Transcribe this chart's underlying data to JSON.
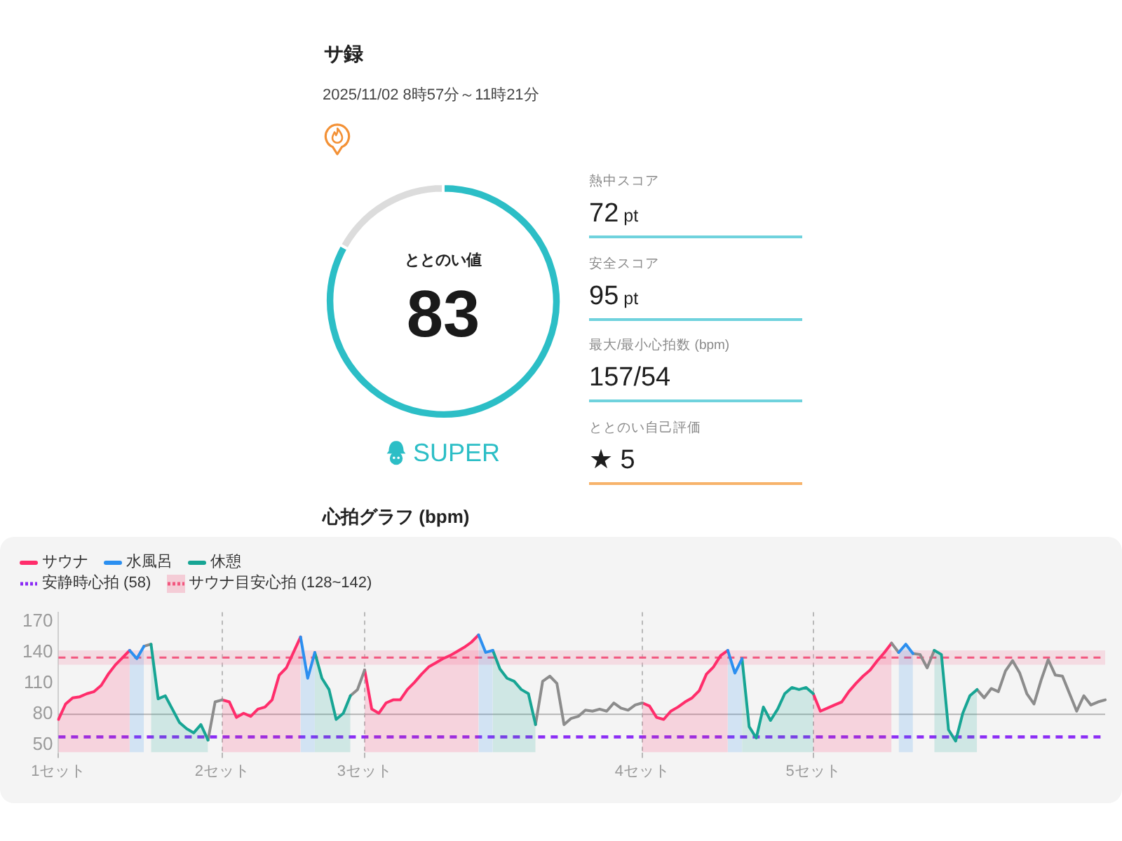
{
  "chart_data": [
    {
      "type": "other",
      "title": "サ録",
      "subtitle": "2025/11/02 8時57分～11時21分"
    },
    {
      "type": "donut",
      "title": "ととのい値",
      "categories": [
        null,
        null
      ],
      "values": [
        83,
        17
      ],
      "colors": [
        "#2cbec6",
        "#dcdcdc"
      ],
      "value_labels": [
        "83",
        null
      ],
      "annotations": [
        "SUPER"
      ]
    },
    {
      "type": "other",
      "annotations": [
        "熱中スコア",
        "72 pt",
        "安全スコア",
        "95 pt",
        "最大/最小心拍数 (bpm)",
        "157/54",
        "ととのい自己評価",
        "★ 5"
      ]
    },
    {
      "type": "area",
      "title": "心拍グラフ (bpm)",
      "categories": [
        "1セット",
        null,
        null,
        null,
        null,
        null,
        null,
        null,
        null,
        null,
        null,
        null,
        null,
        null,
        null,
        null,
        null,
        null,
        null,
        null,
        null,
        null,
        null,
        "2セット",
        null,
        null,
        null,
        null,
        null,
        null,
        null,
        null,
        null,
        null,
        null,
        null,
        null,
        null,
        null,
        null,
        null,
        null,
        null,
        "3セット",
        null,
        null,
        null,
        null,
        null,
        null,
        null,
        null,
        null,
        null,
        null,
        null,
        null,
        null,
        null,
        null,
        null,
        null,
        null,
        null,
        null,
        null,
        null,
        null,
        null,
        null,
        null,
        null,
        null,
        null,
        null,
        null,
        null,
        null,
        null,
        null,
        null,
        null,
        "4セット",
        null,
        null,
        null,
        null,
        null,
        null,
        null,
        null,
        null,
        null,
        null,
        null,
        null,
        null,
        null,
        null,
        null,
        null,
        null,
        null,
        null,
        null,
        null,
        "5セット",
        null,
        null,
        null,
        null,
        null,
        null,
        null,
        null,
        null,
        null,
        null,
        null,
        null,
        null,
        null,
        null,
        null,
        null,
        null,
        null,
        null,
        null,
        null,
        null,
        null,
        null,
        null,
        null,
        null,
        null,
        null,
        null,
        null,
        null,
        null,
        null,
        null,
        null,
        null,
        null,
        null
      ],
      "series": [
        {
          "name": "サウナ",
          "color": "#ff2d6b",
          "values": [
            75,
            90,
            96,
            97,
            100,
            102,
            108,
            119,
            128,
            135,
            142,
            null,
            null,
            null,
            null,
            null,
            null,
            null,
            null,
            null,
            null,
            null,
            null,
            94,
            92,
            77,
            81,
            78,
            85,
            87,
            94,
            118,
            125,
            140,
            155,
            null,
            null,
            null,
            null,
            null,
            null,
            null,
            null,
            123,
            85,
            81,
            91,
            94,
            94,
            104,
            111,
            119,
            126,
            130,
            134,
            137,
            141,
            145,
            150,
            157,
            null,
            null,
            null,
            null,
            null,
            null,
            null,
            null,
            null,
            null,
            null,
            null,
            null,
            null,
            null,
            null,
            null,
            null,
            null,
            null,
            null,
            null,
            91,
            88,
            77,
            75,
            83,
            87,
            92,
            96,
            103,
            119,
            126,
            137,
            142,
            null,
            null,
            null,
            null,
            null,
            null,
            null,
            null,
            null,
            null,
            null,
            100,
            83,
            86,
            89,
            92,
            102,
            110,
            117,
            123,
            132,
            140,
            149,
            null,
            null,
            null,
            null,
            null,
            null,
            null,
            null,
            null,
            null,
            null,
            null,
            null,
            null,
            null,
            null,
            null,
            null,
            null,
            null,
            null,
            null,
            null,
            null,
            null,
            null,
            null,
            null,
            null,
            null
          ]
        },
        {
          "name": "水風呂",
          "color": "#2b8ff0",
          "values": [
            null,
            null,
            null,
            null,
            null,
            null,
            null,
            null,
            null,
            null,
            142,
            134,
            146,
            null,
            null,
            null,
            null,
            null,
            null,
            null,
            null,
            null,
            null,
            null,
            null,
            null,
            null,
            null,
            null,
            null,
            null,
            null,
            null,
            null,
            155,
            115,
            140,
            null,
            null,
            null,
            null,
            null,
            null,
            null,
            null,
            null,
            null,
            null,
            null,
            null,
            null,
            null,
            null,
            null,
            null,
            null,
            null,
            null,
            null,
            157,
            140,
            142,
            null,
            null,
            null,
            null,
            null,
            null,
            null,
            null,
            null,
            null,
            null,
            null,
            null,
            null,
            null,
            null,
            null,
            null,
            null,
            null,
            null,
            null,
            null,
            null,
            null,
            null,
            null,
            null,
            null,
            null,
            null,
            null,
            142,
            120,
            134,
            null,
            null,
            null,
            null,
            null,
            null,
            null,
            null,
            null,
            null,
            null,
            null,
            null,
            null,
            null,
            null,
            null,
            null,
            null,
            null,
            null,
            140,
            148,
            139,
            null,
            null,
            null,
            null,
            null,
            null,
            null,
            null,
            null,
            null,
            null,
            null,
            null,
            null,
            null,
            null,
            null,
            null,
            null,
            null,
            null,
            null,
            null,
            null,
            null,
            null,
            null
          ]
        },
        {
          "name": "休憩",
          "color": "#17a594",
          "values": [
            null,
            null,
            null,
            null,
            null,
            null,
            null,
            null,
            null,
            null,
            null,
            null,
            null,
            148,
            95,
            98,
            85,
            72,
            66,
            62,
            70,
            55,
            null,
            null,
            null,
            null,
            null,
            null,
            null,
            null,
            null,
            null,
            null,
            null,
            null,
            null,
            140,
            115,
            104,
            75,
            81,
            98,
            null,
            null,
            null,
            null,
            null,
            null,
            null,
            null,
            null,
            null,
            null,
            null,
            null,
            null,
            null,
            null,
            null,
            null,
            null,
            142,
            124,
            115,
            112,
            104,
            100,
            70,
            null,
            null,
            null,
            null,
            null,
            null,
            null,
            null,
            null,
            null,
            null,
            null,
            null,
            null,
            null,
            null,
            null,
            null,
            null,
            null,
            null,
            null,
            null,
            null,
            null,
            null,
            null,
            null,
            134,
            68,
            57,
            87,
            74,
            85,
            100,
            106,
            104,
            106,
            100,
            null,
            null,
            null,
            null,
            null,
            null,
            null,
            null,
            null,
            null,
            null,
            null,
            null,
            null,
            null,
            null,
            142,
            138,
            65,
            54,
            81,
            98,
            104,
            null,
            null,
            null,
            null,
            null,
            null,
            null,
            null,
            null,
            null,
            null,
            null,
            null,
            null,
            null,
            null,
            null,
            null
          ]
        },
        {
          "type": "line",
          "color": "#8c8c8c",
          "values": [
            null,
            null,
            null,
            null,
            null,
            null,
            null,
            null,
            null,
            null,
            null,
            null,
            146,
            148,
            null,
            null,
            null,
            null,
            null,
            null,
            null,
            55,
            92,
            94,
            null,
            null,
            null,
            null,
            null,
            null,
            null,
            null,
            null,
            null,
            null,
            null,
            null,
            null,
            null,
            null,
            null,
            98,
            104,
            123,
            null,
            null,
            null,
            null,
            null,
            null,
            null,
            null,
            null,
            null,
            null,
            null,
            null,
            null,
            null,
            null,
            null,
            null,
            null,
            null,
            null,
            null,
            null,
            70,
            112,
            117,
            110,
            70,
            76,
            78,
            84,
            83,
            85,
            83,
            91,
            86,
            84,
            89,
            91,
            null,
            null,
            null,
            null,
            null,
            null,
            null,
            null,
            null,
            null,
            null,
            null,
            null,
            null,
            null,
            null,
            null,
            null,
            null,
            null,
            null,
            null,
            null,
            null,
            null,
            null,
            null,
            null,
            null,
            null,
            null,
            null,
            null,
            null,
            149,
            140,
            null,
            139,
            138,
            125,
            142,
            null,
            null,
            null,
            null,
            null,
            104,
            96,
            105,
            102,
            122,
            132,
            120,
            100,
            90,
            113,
            133,
            118,
            117,
            100,
            83,
            98,
            89,
            92,
            94
          ]
        }
      ],
      "ylim": [
        43,
        179
      ],
      "yticks": [
        50,
        80,
        110,
        140,
        170
      ],
      "grid": "x",
      "legend": "top left",
      "ref_lines": [
        {
          "axis": "y",
          "value": 58,
          "label": "安静時心拍 (58)",
          "color": "#8b2cf5",
          "line_style": "dashed"
        },
        {
          "axis": "y",
          "value": 135,
          "color": "#f2577f",
          "line_style": "dashed"
        },
        {
          "axis": "y",
          "value": 80,
          "color": "#b5b5b5"
        }
      ],
      "bands": [
        {
          "axis": "y",
          "from": 128,
          "to": 142,
          "label": "サウナ目安心拍 (128~142)",
          "color": "#f4a3b8"
        }
      ]
    }
  ]
}
